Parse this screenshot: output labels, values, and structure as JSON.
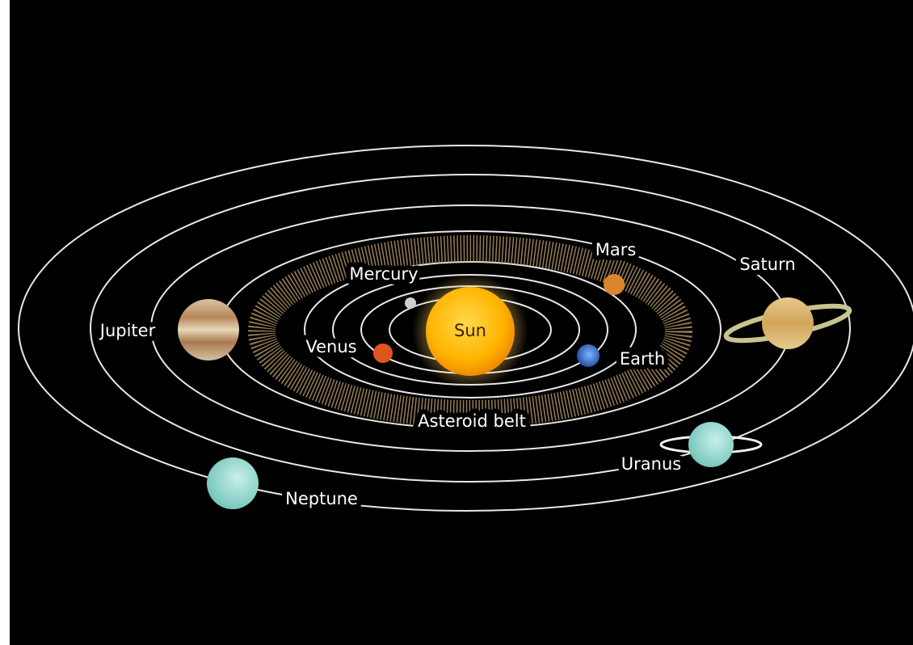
{
  "nodes": [
    {
      "label": "Sun"
    },
    {
      "label": "Mercury"
    },
    {
      "label": "Venus"
    },
    {
      "label": "Earth"
    },
    {
      "label": "Mars"
    },
    {
      "label": "Asteroid belt"
    },
    {
      "label": "Jupiter"
    },
    {
      "label": "Saturn"
    },
    {
      "label": "Uranus"
    },
    {
      "label": "Neptune"
    }
  ]
}
